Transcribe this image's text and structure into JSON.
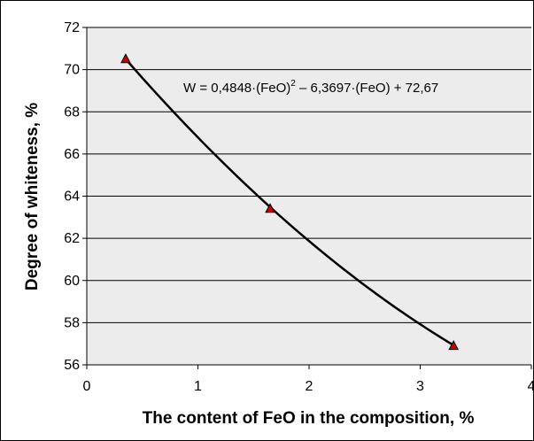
{
  "chart_data": {
    "type": "scatter",
    "xlabel": "The content of FeO in the composition, %",
    "ylabel": "Degree of whiteness, %",
    "xlim": [
      0,
      4
    ],
    "ylim": [
      56,
      72
    ],
    "x_ticks": [
      "0",
      "1",
      "2",
      "3",
      "4"
    ],
    "y_ticks": [
      "56",
      "58",
      "60",
      "62",
      "64",
      "66",
      "68",
      "70",
      "72"
    ],
    "grid": "horizontal",
    "plot_background": "#ececec",
    "marker_color": "#cc0000",
    "line_color": "#000000",
    "series": [
      {
        "x": [
          0.35,
          1.65,
          3.3
        ],
        "y": [
          70.5,
          63.4,
          56.9
        ]
      }
    ],
    "trendline": {
      "type": "polynomial-2",
      "a": 0.4848,
      "b": -6.3697,
      "c": 72.67,
      "x_range": [
        0.35,
        3.3
      ]
    },
    "annotation": {
      "main": "W = 0,4848·(FeO)",
      "sup": "2",
      "rest": " – 6,3697·(FeO) + 72,67"
    }
  }
}
